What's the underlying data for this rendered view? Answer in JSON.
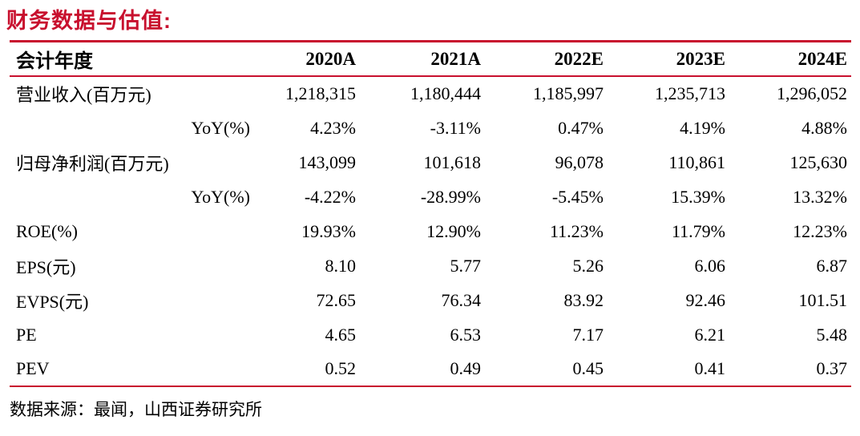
{
  "title": "财务数据与估值:",
  "table": {
    "header": {
      "label": "会计年度",
      "years": [
        "2020A",
        "2021A",
        "2022E",
        "2023E",
        "2024E"
      ]
    },
    "rows": [
      {
        "label": "营业收入(百万元)",
        "align": "left",
        "values": [
          "1,218,315",
          "1,180,444",
          "1,185,997",
          "1,235,713",
          "1,296,052"
        ]
      },
      {
        "label": "YoY(%)",
        "align": "right",
        "values": [
          "4.23%",
          "-3.11%",
          "0.47%",
          "4.19%",
          "4.88%"
        ]
      },
      {
        "label": "归母净利润(百万元)",
        "align": "left",
        "values": [
          "143,099",
          "101,618",
          "96,078",
          "110,861",
          "125,630"
        ]
      },
      {
        "label": "YoY(%)",
        "align": "right",
        "values": [
          "-4.22%",
          "-28.99%",
          "-5.45%",
          "15.39%",
          "13.32%"
        ]
      },
      {
        "label": "ROE(%)",
        "align": "left",
        "values": [
          "19.93%",
          "12.90%",
          "11.23%",
          "11.79%",
          "12.23%"
        ]
      },
      {
        "label": "EPS(元)",
        "align": "left",
        "values": [
          "8.10",
          "5.77",
          "5.26",
          "6.06",
          "6.87"
        ]
      },
      {
        "label": "EVPS(元)",
        "align": "left",
        "values": [
          "72.65",
          "76.34",
          "83.92",
          "92.46",
          "101.51"
        ]
      },
      {
        "label": "PE",
        "align": "left",
        "values": [
          "4.65",
          "6.53",
          "7.17",
          "6.21",
          "5.48"
        ]
      },
      {
        "label": "PEV",
        "align": "left",
        "values": [
          "0.52",
          "0.49",
          "0.45",
          "0.41",
          "0.37"
        ]
      }
    ]
  },
  "footer": {
    "source": "数据来源：最闻，山西证券研究所"
  },
  "colors": {
    "accent": "#c8102e",
    "text": "#000000",
    "background": "#ffffff"
  }
}
